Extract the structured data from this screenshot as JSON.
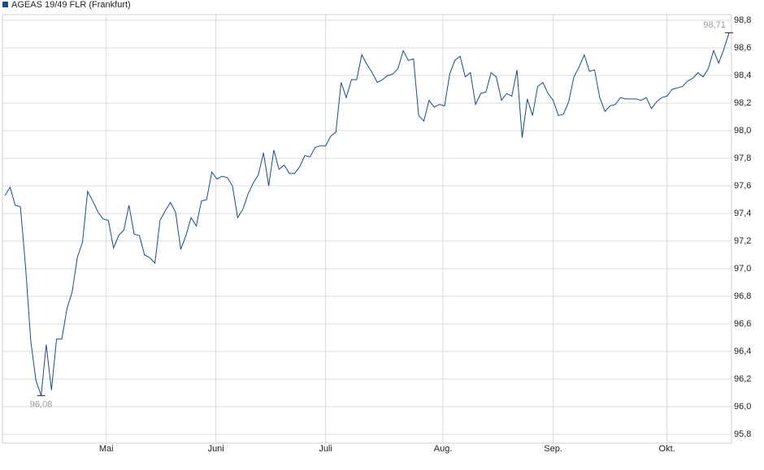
{
  "chart_data": {
    "type": "line",
    "series": [
      {
        "name": "AGEAS 19/49 FLR (Frankfurt)",
        "color": "#1a4a8c",
        "values": [
          97.53,
          97.59,
          97.46,
          97.45,
          97.01,
          96.48,
          96.19,
          96.08,
          96.45,
          96.12,
          96.49,
          96.49,
          96.71,
          96.83,
          97.08,
          97.19,
          97.56,
          97.49,
          97.41,
          97.36,
          97.35,
          97.15,
          97.24,
          97.28,
          97.46,
          97.25,
          97.24,
          97.1,
          97.08,
          97.04,
          97.35,
          97.42,
          97.48,
          97.41,
          97.14,
          97.24,
          97.37,
          97.31,
          97.49,
          97.5,
          97.7,
          97.65,
          97.67,
          97.66,
          97.6,
          97.37,
          97.43,
          97.54,
          97.62,
          97.68,
          97.84,
          97.6,
          97.86,
          97.72,
          97.75,
          97.69,
          97.69,
          97.74,
          97.82,
          97.81,
          97.88,
          97.89,
          97.89,
          97.96,
          97.99,
          98.35,
          98.24,
          98.37,
          98.37,
          98.55,
          98.48,
          98.42,
          98.35,
          98.37,
          98.4,
          98.41,
          98.45,
          98.58,
          98.51,
          98.52,
          98.11,
          98.07,
          98.22,
          98.17,
          98.19,
          98.18,
          98.41,
          98.51,
          98.54,
          98.39,
          98.42,
          98.19,
          98.27,
          98.28,
          98.42,
          98.39,
          98.22,
          98.27,
          98.25,
          98.44,
          97.95,
          98.23,
          98.11,
          98.32,
          98.35,
          98.27,
          98.22,
          98.11,
          98.12,
          98.21,
          98.39,
          98.46,
          98.55,
          98.43,
          98.44,
          98.24,
          98.14,
          98.18,
          98.19,
          98.24,
          98.23,
          98.23,
          98.23,
          98.22,
          98.24,
          98.16,
          98.21,
          98.24,
          98.25,
          98.3,
          98.31,
          98.32,
          98.36,
          98.38,
          98.42,
          98.39,
          98.45,
          98.58,
          98.49,
          98.59,
          98.71
        ]
      }
    ],
    "x": [
      0,
      1,
      2,
      3,
      4,
      5,
      6,
      7,
      8,
      9,
      10,
      11,
      12,
      13,
      14,
      15,
      16,
      17,
      18,
      19,
      20,
      21,
      22,
      23,
      24,
      25,
      26,
      27,
      28,
      29,
      30,
      31,
      32,
      33,
      34,
      35,
      36,
      37,
      38,
      39,
      40,
      41,
      42,
      43,
      44,
      45,
      46,
      47,
      48,
      49,
      50,
      51,
      52,
      53,
      54,
      55,
      56,
      57,
      58,
      59,
      60,
      61,
      62,
      63,
      64,
      65,
      66,
      67,
      68,
      69,
      70,
      71,
      72,
      73,
      74,
      75,
      76,
      77,
      78,
      79,
      80,
      81,
      82,
      83,
      84,
      85,
      86,
      87,
      88,
      89,
      90,
      91,
      92,
      93,
      94,
      95,
      96,
      97,
      98,
      99,
      100,
      101,
      102,
      103,
      104,
      105,
      106,
      107,
      108,
      109,
      110,
      111,
      112,
      113,
      114,
      115,
      116,
      117,
      118,
      119,
      120,
      121,
      122,
      123,
      124,
      125,
      126,
      127,
      128,
      129,
      130,
      131,
      132,
      133,
      134,
      135,
      136,
      137,
      138,
      139,
      140
    ],
    "xlim": [
      0,
      140
    ],
    "xticks": [
      {
        "value": 19.6,
        "label": "Mai"
      },
      {
        "value": 40.8,
        "label": "Juni"
      },
      {
        "value": 62.0,
        "label": "Juli"
      },
      {
        "value": 84.7,
        "label": "Aug."
      },
      {
        "value": 106.0,
        "label": "Sep."
      },
      {
        "value": 128.0,
        "label": "Okt."
      }
    ],
    "ylim": [
      95.8,
      98.8
    ],
    "yticks": [
      {
        "value": 95.8,
        "label": "95,8"
      },
      {
        "value": 96.0,
        "label": "96,0"
      },
      {
        "value": 96.2,
        "label": "96,2"
      },
      {
        "value": 96.4,
        "label": "96,4"
      },
      {
        "value": 96.6,
        "label": "96,6"
      },
      {
        "value": 96.8,
        "label": "96,8"
      },
      {
        "value": 97.0,
        "label": "97,0"
      },
      {
        "value": 97.2,
        "label": "97,2"
      },
      {
        "value": 97.4,
        "label": "97,4"
      },
      {
        "value": 97.6,
        "label": "97,6"
      },
      {
        "value": 97.8,
        "label": "97,8"
      },
      {
        "value": 98.0,
        "label": "98,0"
      },
      {
        "value": 98.2,
        "label": "98,2"
      },
      {
        "value": 98.4,
        "label": "98,4"
      },
      {
        "value": 98.6,
        "label": "98,6"
      },
      {
        "value": 98.8,
        "label": "98,8"
      }
    ],
    "annotations": [
      {
        "text": "96,08",
        "x": 7,
        "y": 96.08,
        "position": "below"
      },
      {
        "text": "98,71",
        "x": 140,
        "y": 98.71,
        "position": "above"
      }
    ],
    "grid": true,
    "legend": "top-left"
  }
}
